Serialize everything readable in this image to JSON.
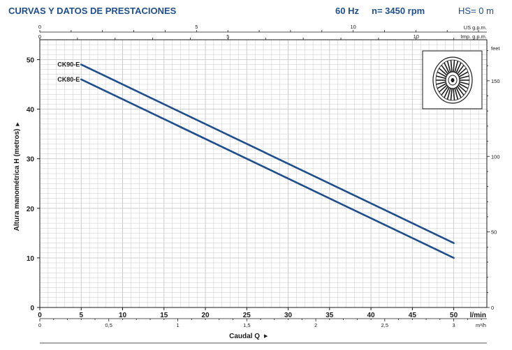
{
  "header": {
    "title": "CURVAS Y DATOS DE PRESTACIONES",
    "frequency": "60 Hz",
    "speed": "n= 3450 rpm",
    "suction": "HS= 0 m"
  },
  "colors": {
    "title": "#1f4e8c",
    "curve": "#1f4e8c",
    "grid": "#c8c8c8"
  },
  "impeller_icon": "impeller-icon",
  "chart_data": {
    "type": "line",
    "xlabel": "Caudal Q",
    "ylabel": "Altura manométrica H (metros)",
    "x_unit": "l/min",
    "xlim": [
      0,
      54
    ],
    "ylim": [
      0,
      54
    ],
    "x_ticks": [
      0,
      5,
      10,
      15,
      20,
      25,
      30,
      35,
      40,
      45,
      50
    ],
    "x_tick_labels": [
      "0",
      "5",
      "10",
      "15",
      "20",
      "25",
      "30",
      "35",
      "40",
      "45",
      "50"
    ],
    "y_ticks": [
      0,
      10,
      20,
      30,
      40,
      50
    ],
    "y_tick_labels": [
      "0",
      "10",
      "20",
      "30",
      "40",
      "50"
    ],
    "secondary_axes": {
      "top_usgpm": {
        "unit": "US g.p.m.",
        "ticks": [
          0,
          5,
          10
        ],
        "tick_labels": [
          "0",
          "5",
          "10"
        ]
      },
      "top_impgpm": {
        "unit": "Imp. g.p.m.",
        "ticks": [
          0,
          5,
          10
        ],
        "tick_labels": [
          "0",
          "5",
          "10"
        ]
      },
      "bottom_m3h": {
        "unit": "m³/h",
        "ticks": [
          0,
          0.5,
          1,
          1.5,
          2,
          2.5,
          3
        ],
        "tick_labels": [
          "0",
          "0,5",
          "1",
          "1,5",
          "2",
          "2,5",
          "3"
        ]
      },
      "right_feet": {
        "unit": "feet",
        "ticks": [
          0,
          50,
          100,
          150
        ],
        "tick_labels": [
          "0",
          "50",
          "100",
          "150"
        ]
      }
    },
    "series": [
      {
        "name": "CK90-E",
        "x": [
          5,
          50
        ],
        "y": [
          49,
          13
        ]
      },
      {
        "name": "CK80-E",
        "x": [
          5,
          50
        ],
        "y": [
          46,
          10
        ]
      }
    ]
  }
}
